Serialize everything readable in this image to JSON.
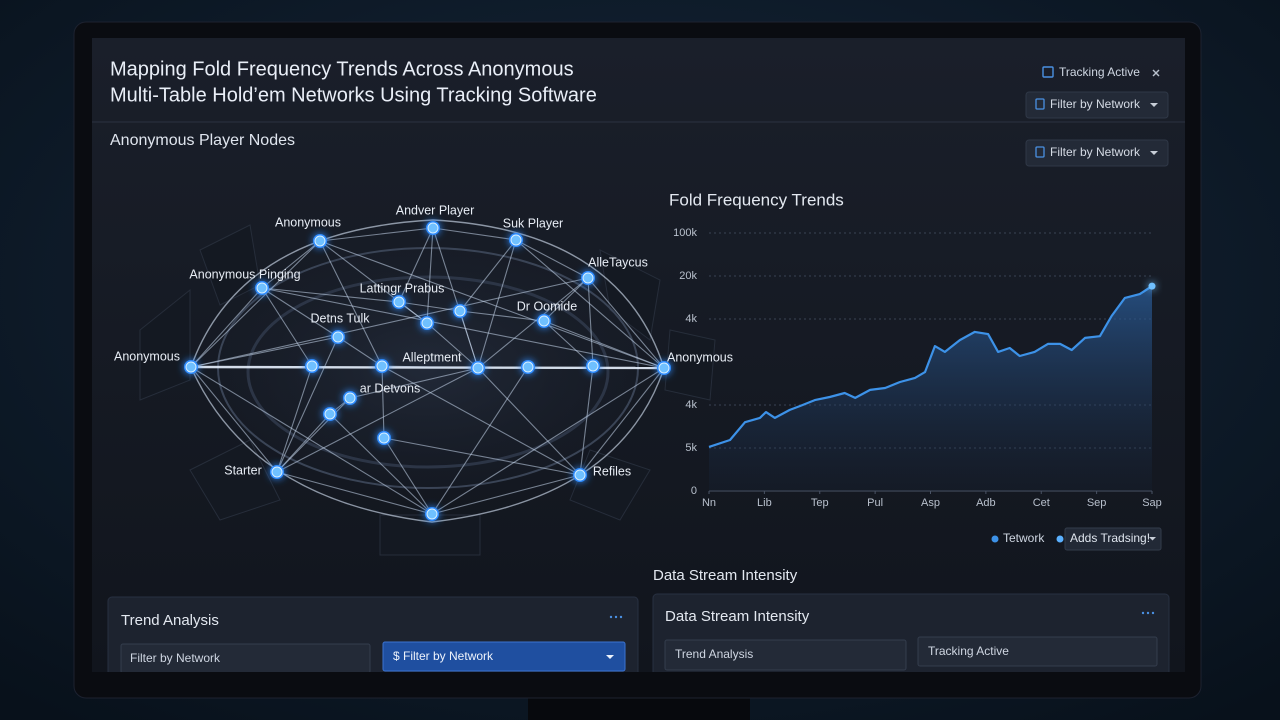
{
  "header": {
    "title_lines": [
      "Mapping Fold Frequency Trends Across Anonymous",
      "Multi-Table Hold’em Networks Using Tracking Software"
    ],
    "status": "Tracking Active",
    "filter": "Filter by Network"
  },
  "network": {
    "title": "Anonymous Player Nodes",
    "filter": "Filter by Network",
    "node_labels": [
      "Anonymous",
      "Andver Player",
      "Suk Player",
      "AlleTaycus",
      "Anonymous Pinging",
      "Lattingr Prabus",
      "Dr Oomide",
      "Detns Tulk",
      "Anonymous",
      "Alleptment",
      "Anonymous",
      "ar Detvons",
      "Starter",
      "Refiles"
    ]
  },
  "chart_data": {
    "type": "line",
    "title": "Fold Frequency Trends",
    "x": [
      0,
      0.38,
      0.65,
      0.92,
      1.03,
      1.19,
      1.46,
      1.64,
      1.91,
      2.18,
      2.45,
      2.64,
      2.91,
      3.18,
      3.45,
      3.72,
      3.9,
      4.08,
      4.26,
      4.53,
      4.8,
      5.04,
      5.22,
      5.43,
      5.61,
      5.88,
      6.12,
      6.34,
      6.55,
      6.79,
      7.06,
      7.27,
      7.51,
      7.78,
      8
    ],
    "series": [
      {
        "name": "Tetwork",
        "color": "#3d92e8",
        "values": [
          20.5,
          23.7,
          32,
          34,
          36.7,
          34,
          37.7,
          39.5,
          42.3,
          43.7,
          45.6,
          43.3,
          47,
          47.9,
          50.7,
          52.6,
          55.3,
          67.4,
          64.7,
          70.2,
          74,
          73,
          64.7,
          66.5,
          62.8,
          64.7,
          68.4,
          68.4,
          65.6,
          71.2,
          72,
          81.4,
          89.8,
          91.6,
          95.3
        ]
      }
    ],
    "xlim": [
      0,
      8
    ],
    "xticks": [
      {
        "value": 0,
        "label": "Nn"
      },
      {
        "value": 1,
        "label": "Lib"
      },
      {
        "value": 2,
        "label": "Tep"
      },
      {
        "value": 3,
        "label": "Pul"
      },
      {
        "value": 4,
        "label": "Asp"
      },
      {
        "value": 5,
        "label": "Adb"
      },
      {
        "value": 6,
        "label": "Cet"
      },
      {
        "value": 7,
        "label": "Sep"
      },
      {
        "value": 8,
        "label": "Sap"
      }
    ],
    "ylim": [
      0,
      120
    ],
    "yticks": [
      0,
      {
        "value": 20,
        "label": "5k"
      },
      {
        "value": 40,
        "label": "4k"
      },
      {
        "value": 80,
        "label": "4k"
      },
      {
        "value": 100,
        "label": "20k"
      },
      {
        "value": 120,
        "label": "100k"
      }
    ],
    "grid": true
  },
  "chart_controls": {
    "dropdown": "Adds Tradsing!"
  },
  "stream_heading": "Data Stream Intensity",
  "panels": [
    {
      "title": "Trend Analysis",
      "fields": [
        "Filter by Network",
        "$ Filter by Network"
      ]
    },
    {
      "title": "Data Stream Intensity",
      "fields": [
        "Trend Analysis",
        "Tracking Active"
      ]
    }
  ]
}
